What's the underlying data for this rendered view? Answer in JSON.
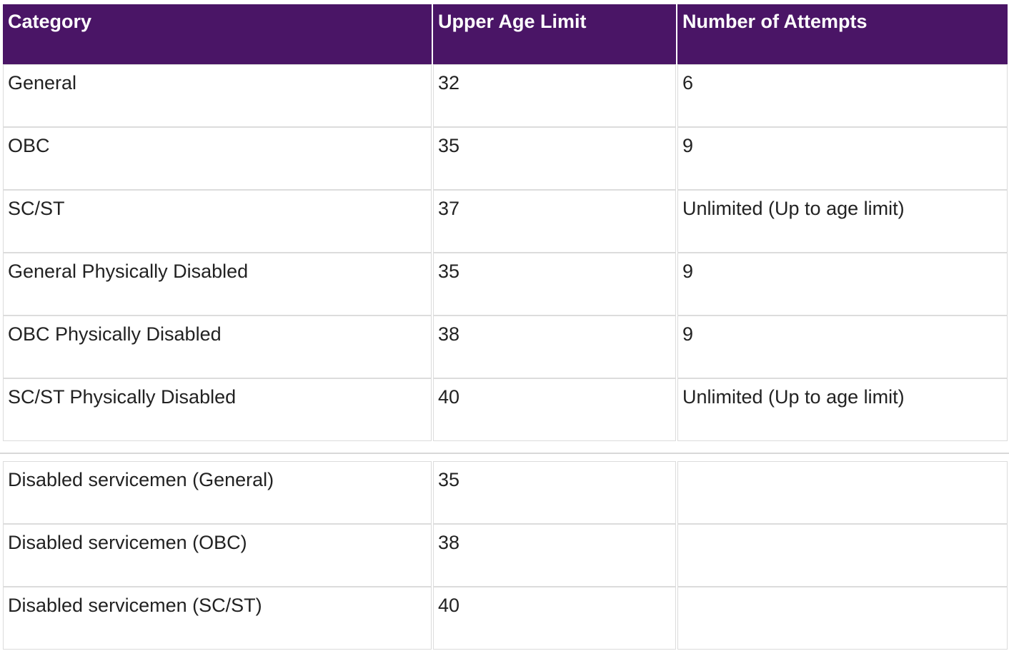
{
  "table": {
    "header": [
      "Category",
      "Upper Age Limit",
      "Number of Attempts"
    ],
    "rows": [
      [
        "General",
        "32",
        "6"
      ],
      [
        "OBC",
        "35",
        "9"
      ],
      [
        "SC/ST",
        "37",
        "Unlimited (Up to age limit)"
      ],
      [
        "General Physically Disabled",
        "35",
        "9"
      ],
      [
        "OBC Physically Disabled",
        "38",
        "9"
      ],
      [
        "SC/ST Physically Disabled",
        "40",
        "Unlimited (Up to age limit)"
      ]
    ]
  },
  "table2": {
    "rows": [
      [
        "Disabled servicemen (General)",
        "35"
      ],
      [
        "Disabled servicemen (OBC)",
        "38"
      ],
      [
        "Disabled servicemen (SC/ST)",
        "40"
      ]
    ]
  }
}
